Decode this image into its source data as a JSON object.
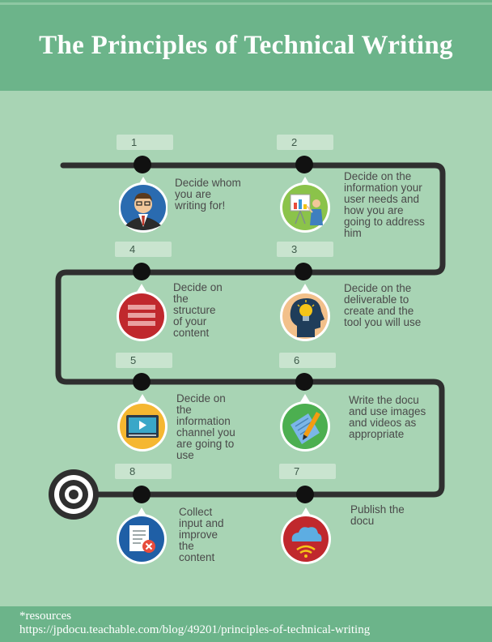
{
  "title": "The Principles of Technical Writing",
  "steps": [
    {
      "number": "1",
      "text": "Decide whom\nyou are\nwriting for!"
    },
    {
      "number": "2",
      "text": "Decide on the\ninformation your\nuser needs and\nhow you are\ngoing to address\nhim"
    },
    {
      "number": "3",
      "text": "Decide on the\ndeliverable to\ncreate and the\ntool you will use"
    },
    {
      "number": "4",
      "text": "Decide on\nthe\nstructure\nof your\ncontent"
    },
    {
      "number": "5",
      "text": "Decide on\nthe\ninformation\nchannel you\nare going to\nuse"
    },
    {
      "number": "6",
      "text": "Write the docu\nand use images\nand videos as\nappropriate"
    },
    {
      "number": "7",
      "text": "Publish the\ndocu"
    },
    {
      "number": "8",
      "text": "Collect\ninput and\nimprove\nthe\ncontent"
    }
  ],
  "footer": {
    "resources_label": "*resources",
    "url": "https://jpdocu.teachable.com/blog/49201/principles-of-technical-writing"
  },
  "icons": [
    "businessman-icon",
    "presenter-icon",
    "lightbulb-head-icon",
    "list-icon",
    "video-screen-icon",
    "pencil-paper-icon",
    "cloud-wifi-icon",
    "document-error-icon",
    "target-icon"
  ]
}
